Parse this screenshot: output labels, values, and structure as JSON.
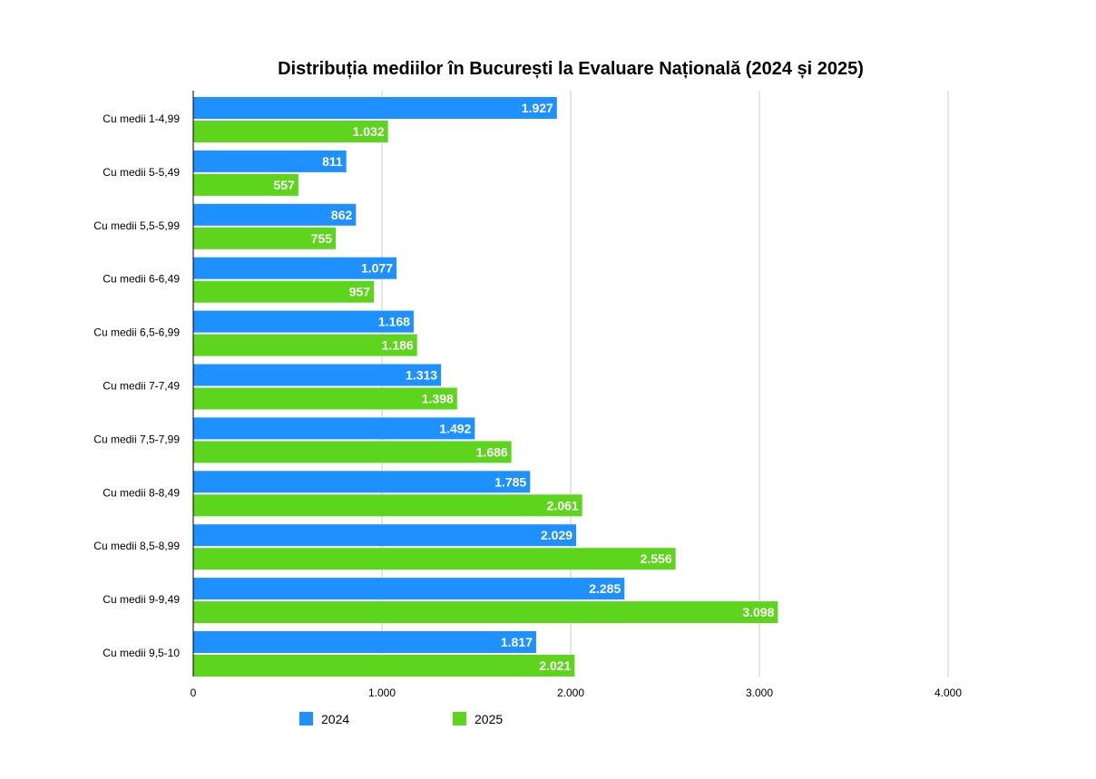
{
  "chart_data": {
    "type": "bar",
    "orientation": "horizontal",
    "title": "Distribuția mediilor în București la Evaluare Națională (2024 și 2025)",
    "xlabel": "",
    "ylabel": "",
    "xlim": [
      0,
      4000
    ],
    "x_ticks": [
      0,
      1000,
      2000,
      3000,
      4000
    ],
    "x_tick_labels": [
      "0",
      "1.000",
      "2.000",
      "3.000",
      "4.000"
    ],
    "grid": true,
    "legend_position": "bottom",
    "categories": [
      "Cu medii 1-4,99",
      "Cu medii 5-5,49",
      "Cu medii 5,5-5,99",
      "Cu medii 6-6,49",
      "Cu medii 6,5-6,99",
      "Cu medii 7-7,49",
      "Cu medii 7,5-7,99",
      "Cu medii 8-8,49",
      "Cu medii 8,5-8,99",
      "Cu medii 9-9,49",
      "Cu medii 9,5-10"
    ],
    "series": [
      {
        "name": "2024",
        "color": "#1e90ff",
        "values": [
          1927,
          811,
          862,
          1077,
          1168,
          1313,
          1492,
          1785,
          2029,
          2285,
          1817
        ],
        "labels": [
          "1.927",
          "811",
          "862",
          "1.077",
          "1.168",
          "1.313",
          "1.492",
          "1.785",
          "2.029",
          "2.285",
          "1.817"
        ]
      },
      {
        "name": "2025",
        "color": "#5dd51c",
        "values": [
          1032,
          557,
          755,
          957,
          1186,
          1398,
          1686,
          2061,
          2556,
          3098,
          2021
        ],
        "labels": [
          "1.032",
          "557",
          "755",
          "957",
          "1.186",
          "1.398",
          "1.686",
          "2.061",
          "2.556",
          "3.098",
          "2.021"
        ]
      }
    ]
  }
}
